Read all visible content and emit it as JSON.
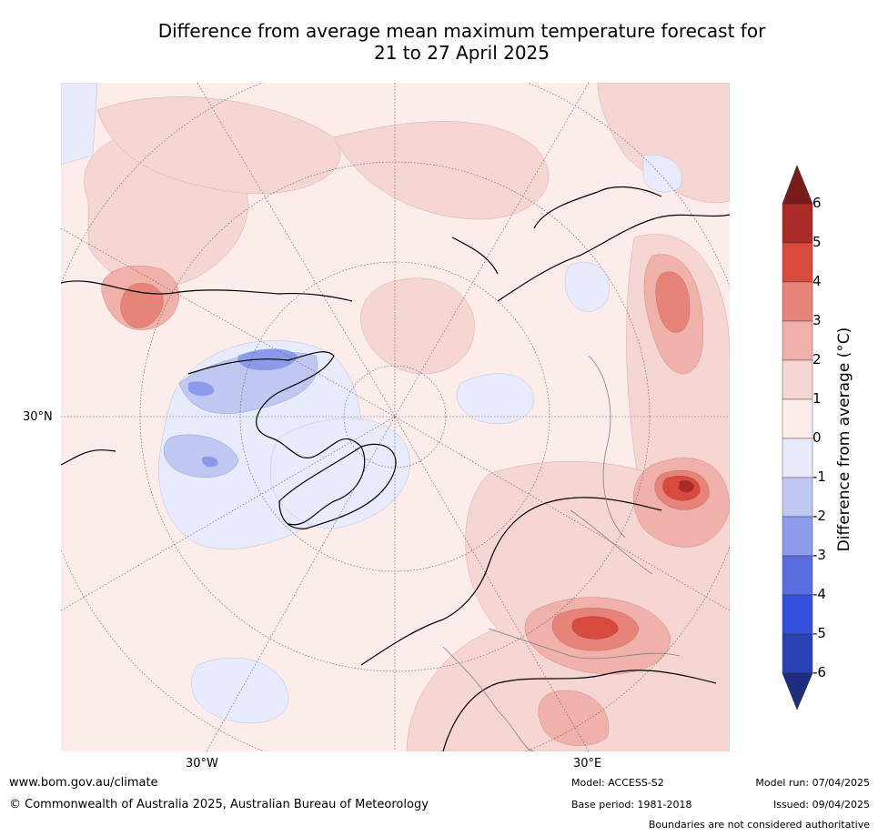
{
  "title": {
    "line1": "Difference from average mean maximum temperature forecast for",
    "line2": "21 to 27 April 2025"
  },
  "axis_labels": {
    "lat_left": "30°N",
    "lon_bottom_left": "30°W",
    "lon_bottom_right": "30°E"
  },
  "colorbar": {
    "title": "Difference from average (°C)",
    "ticks": [
      "6",
      "5",
      "4",
      "3",
      "2",
      "1",
      "0",
      "-1",
      "-2",
      "-3",
      "-4",
      "-5",
      "-6"
    ],
    "colors": {
      "gt6": "#7a1c1c",
      "5to6": "#a92a26",
      "4to5": "#d94a3e",
      "3to4": "#e6847a",
      "2to3": "#efb1aa",
      "1to2": "#f6d6d3",
      "0to1": "#fcecea",
      "m1to0": "#e8ebfb",
      "m2tom1": "#c0c8f2",
      "m3tom2": "#8b9ae9",
      "m4tom3": "#5a6fdf",
      "m5tom4": "#3450dc",
      "m6tom5": "#2841b5",
      "lt_m6": "#1e2d80"
    }
  },
  "footer": {
    "website": "www.bom.gov.au/climate",
    "copyright": "© Commonwealth of Australia 2025, Australian Bureau of Meteorology",
    "model": "Model: ACCESS-S2",
    "base_period": "Base period: 1981-2018",
    "model_run": "Model run: 07/04/2025",
    "issued": "Issued: 09/04/2025",
    "disclaimer": "Boundaries are not considered authoritative"
  }
}
